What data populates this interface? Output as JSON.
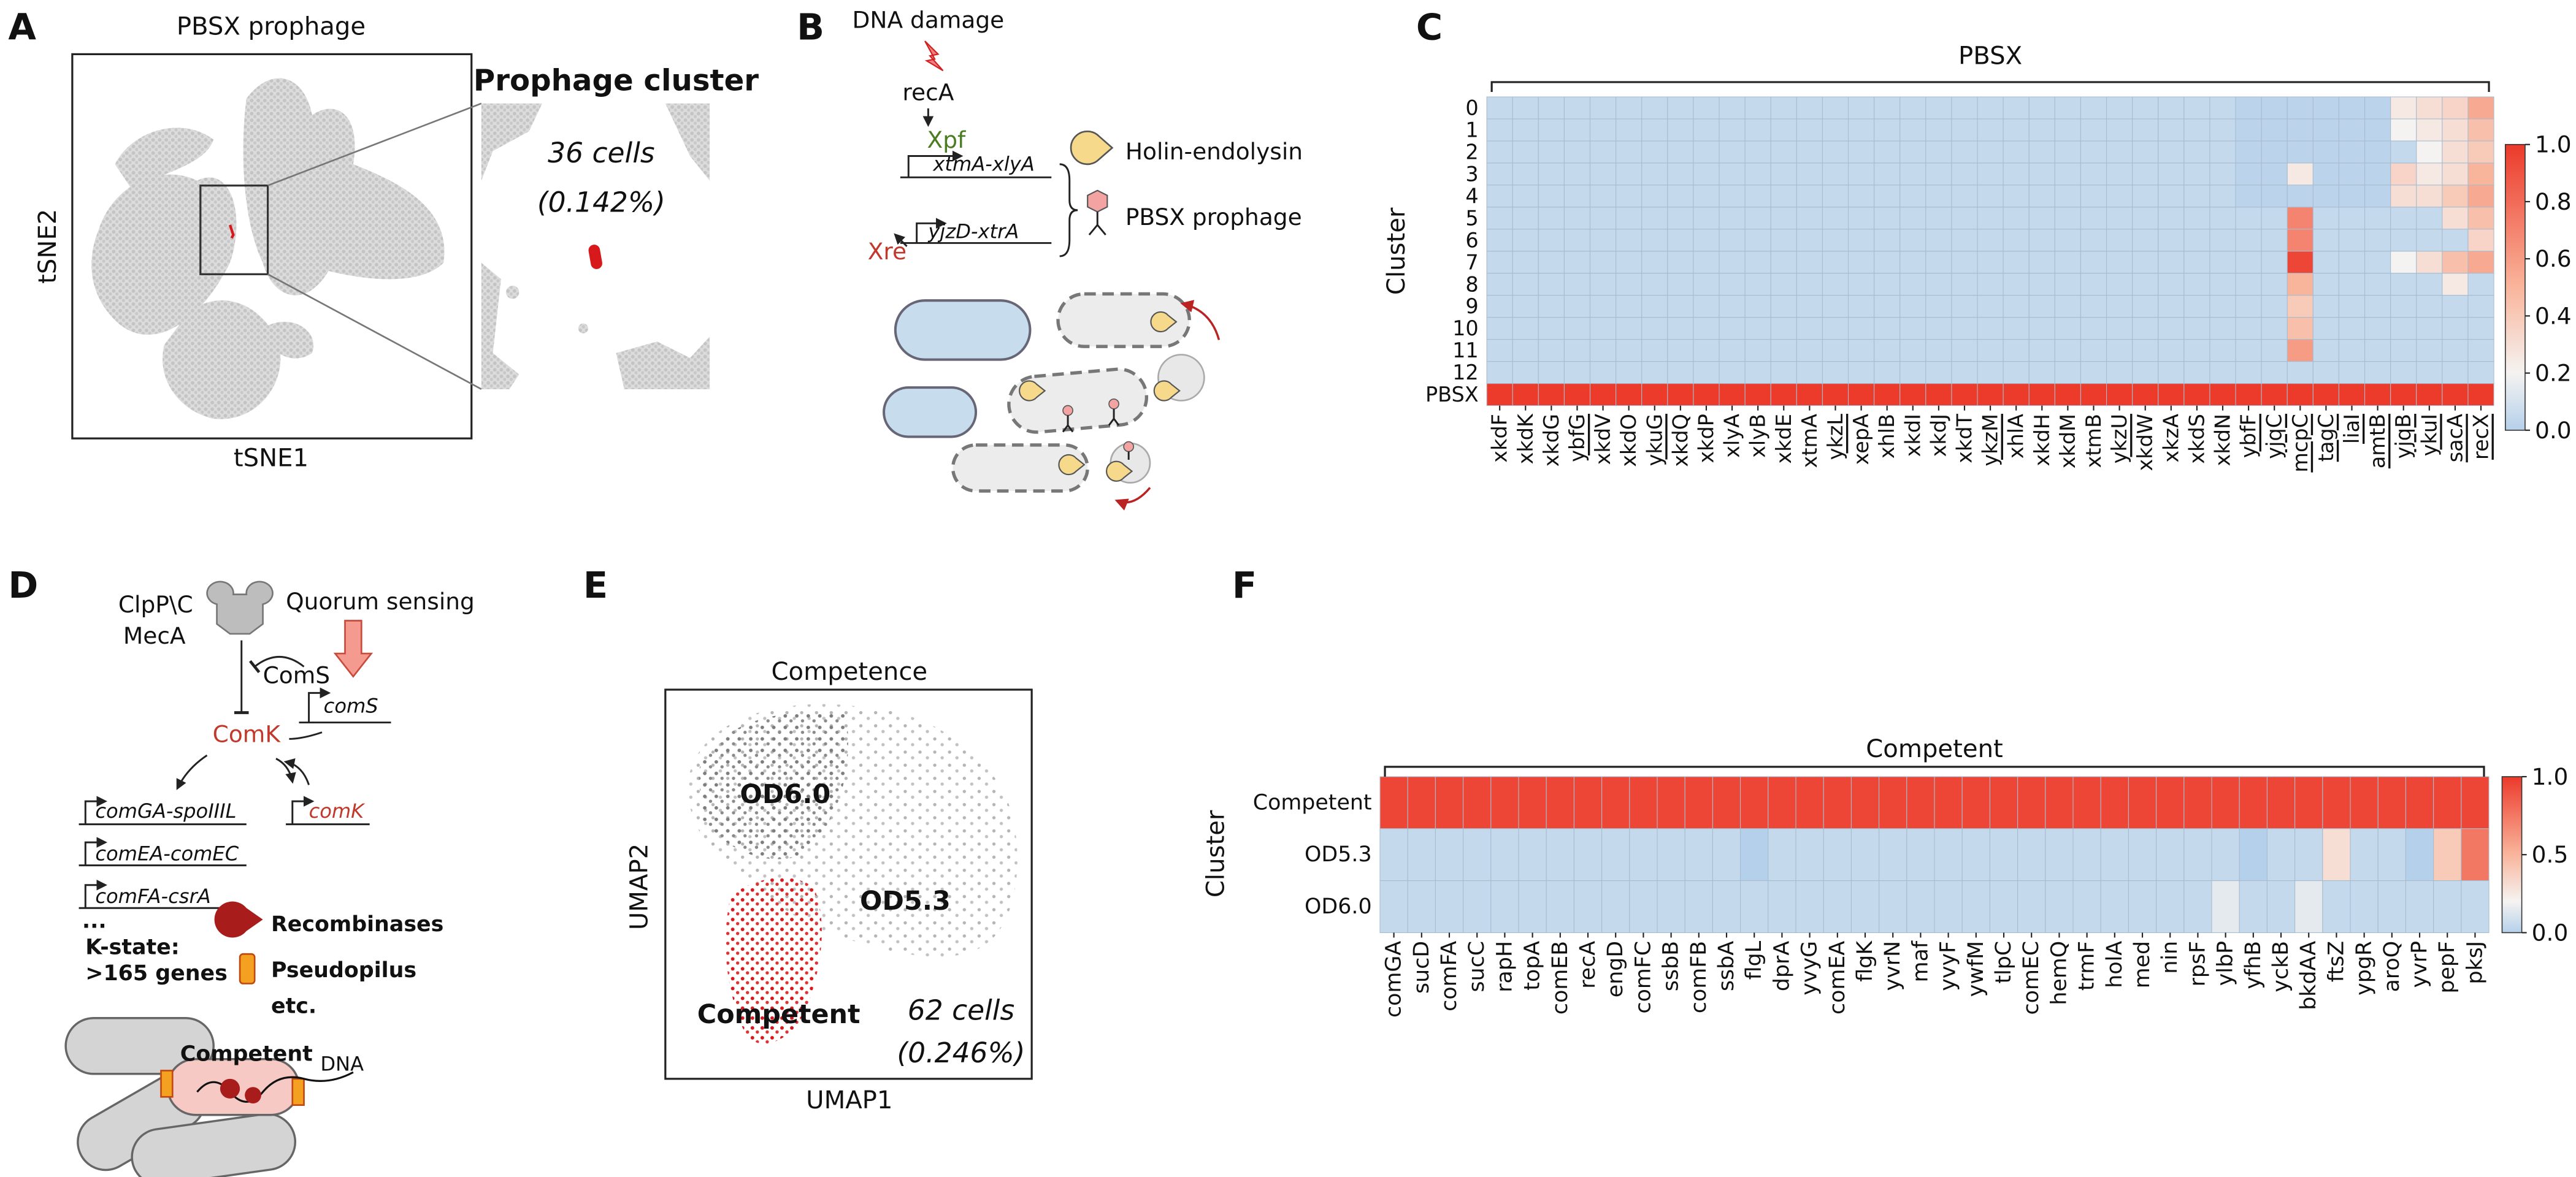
{
  "panel_labels": [
    "A",
    "B",
    "C",
    "D",
    "E",
    "F"
  ],
  "panel_a": {
    "title": "PBSX prophage",
    "x_label": "tSNE1",
    "y_label": "tSNE2",
    "inset_title": "Prophage cluster",
    "cell_count": "36 cells",
    "percent": "(0.142%)"
  },
  "panel_b": {
    "trigger": "DNA damage",
    "sensor": "recA",
    "activator": "Xpf",
    "operon_1": "xtmA-xlyA",
    "repressor": "Xre",
    "operon_2": "yjzD-xtrA",
    "legend_holin": "Holin-endolysin",
    "legend_phage": "PBSX prophage"
  },
  "panel_d": {
    "protease_1": "ClpP\\C",
    "protease_2": "MecA",
    "signal": "Quorum sensing",
    "peptide": "ComS",
    "peptide_gene": "comS",
    "regulator": "ComK",
    "operon_1": "comGA-spoIIIL",
    "self_gene": "comK",
    "operon_2": "comEA-comEC",
    "operon_3": "comFA-csrA",
    "ellipsis": "...",
    "legend_recombinases": "Recombinases",
    "kstate_1": "K-state:",
    "kstate_2": ">165 genes",
    "legend_pilus": "Pseudopilus",
    "legend_etc": "etc.",
    "cell_label": "Competent",
    "dna_label": "DNA"
  },
  "panel_e": {
    "title": "Competence",
    "x_label": "UMAP1",
    "y_label": "UMAP2",
    "group_1": "OD6.0",
    "group_2": "OD5.3",
    "group_3": "Competent",
    "cell_count": "62 cells",
    "percent": "(0.246%)"
  },
  "chart_data": [
    {
      "type": "heatmap",
      "title": "PBSX",
      "y_label": "Cluster",
      "rows": [
        "0",
        "1",
        "2",
        "3",
        "4",
        "5",
        "6",
        "7",
        "8",
        "9",
        "10",
        "11",
        "12",
        "PBSX"
      ],
      "columns": [
        "xkdF",
        "xkdK",
        "xkdG",
        "ybfG",
        "xkdV",
        "xkdO",
        "ykuG",
        "xkdQ",
        "xkdP",
        "xlyA",
        "xlyB",
        "xkdE",
        "xtmA",
        "ykzL",
        "xepA",
        "xhlB",
        "xkdI",
        "xkdJ",
        "xkdT",
        "ykzM",
        "xhlA",
        "xkdH",
        "xkdM",
        "xtmB",
        "ykzU",
        "xkdW",
        "xkzA",
        "xkdS",
        "xkdN",
        "ybfF",
        "yjqC",
        "mcpC",
        "tagC",
        "liaI",
        "amtB",
        "yjqB",
        "ykuI",
        "sacA",
        "recX"
      ],
      "underlined_columns": [
        3,
        6,
        13,
        19,
        24,
        29,
        30,
        31,
        32,
        33,
        34,
        35,
        36,
        37,
        38
      ],
      "values": [
        [
          0.05,
          0.05,
          0.05,
          0.05,
          0.05,
          0.05,
          0.05,
          0.05,
          0.05,
          0.05,
          0.05,
          0.05,
          0.05,
          0.05,
          0.05,
          0.05,
          0.05,
          0.05,
          0.05,
          0.05,
          0.05,
          0.05,
          0.05,
          0.05,
          0.05,
          0.05,
          0.05,
          0.05,
          0.05,
          0.02,
          0.02,
          0.02,
          0.02,
          0.02,
          0.02,
          0.25,
          0.3,
          0.35,
          0.55
        ],
        [
          0.05,
          0.05,
          0.05,
          0.05,
          0.05,
          0.05,
          0.05,
          0.05,
          0.05,
          0.05,
          0.05,
          0.05,
          0.05,
          0.05,
          0.05,
          0.05,
          0.05,
          0.05,
          0.05,
          0.05,
          0.05,
          0.05,
          0.05,
          0.05,
          0.05,
          0.05,
          0.05,
          0.05,
          0.05,
          0.02,
          0.02,
          0.02,
          0.02,
          0.02,
          0.02,
          0.2,
          0.25,
          0.3,
          0.45
        ],
        [
          0.05,
          0.05,
          0.05,
          0.05,
          0.05,
          0.05,
          0.05,
          0.05,
          0.05,
          0.05,
          0.05,
          0.05,
          0.05,
          0.05,
          0.05,
          0.05,
          0.05,
          0.05,
          0.05,
          0.05,
          0.05,
          0.05,
          0.05,
          0.05,
          0.05,
          0.05,
          0.05,
          0.05,
          0.05,
          0.02,
          0.02,
          0.02,
          0.02,
          0.02,
          0.02,
          0.05,
          0.2,
          0.3,
          0.4
        ],
        [
          0.05,
          0.05,
          0.05,
          0.05,
          0.05,
          0.05,
          0.05,
          0.05,
          0.05,
          0.05,
          0.05,
          0.05,
          0.05,
          0.05,
          0.05,
          0.05,
          0.05,
          0.05,
          0.05,
          0.05,
          0.05,
          0.05,
          0.05,
          0.05,
          0.05,
          0.05,
          0.05,
          0.05,
          0.05,
          0.02,
          0.02,
          0.25,
          0.02,
          0.02,
          0.02,
          0.35,
          0.25,
          0.3,
          0.5
        ],
        [
          0.05,
          0.05,
          0.05,
          0.05,
          0.05,
          0.05,
          0.05,
          0.05,
          0.05,
          0.05,
          0.05,
          0.05,
          0.05,
          0.05,
          0.05,
          0.05,
          0.05,
          0.05,
          0.05,
          0.05,
          0.05,
          0.05,
          0.05,
          0.05,
          0.05,
          0.05,
          0.05,
          0.05,
          0.05,
          0.02,
          0.02,
          0.02,
          0.02,
          0.02,
          0.02,
          0.3,
          0.3,
          0.4,
          0.55
        ],
        [
          0.05,
          0.05,
          0.05,
          0.05,
          0.05,
          0.05,
          0.05,
          0.05,
          0.05,
          0.05,
          0.05,
          0.05,
          0.05,
          0.05,
          0.05,
          0.05,
          0.05,
          0.05,
          0.05,
          0.05,
          0.05,
          0.05,
          0.05,
          0.05,
          0.05,
          0.05,
          0.05,
          0.05,
          0.05,
          0.05,
          0.05,
          0.7,
          0.05,
          0.05,
          0.05,
          0.05,
          0.05,
          0.3,
          0.45
        ],
        [
          0.05,
          0.05,
          0.05,
          0.05,
          0.05,
          0.05,
          0.05,
          0.05,
          0.05,
          0.05,
          0.05,
          0.05,
          0.05,
          0.05,
          0.05,
          0.05,
          0.05,
          0.05,
          0.05,
          0.05,
          0.05,
          0.05,
          0.05,
          0.05,
          0.05,
          0.05,
          0.05,
          0.05,
          0.05,
          0.05,
          0.05,
          0.7,
          0.05,
          0.05,
          0.05,
          0.05,
          0.05,
          0.05,
          0.35
        ],
        [
          0.05,
          0.05,
          0.05,
          0.05,
          0.05,
          0.05,
          0.05,
          0.05,
          0.05,
          0.05,
          0.05,
          0.05,
          0.05,
          0.05,
          0.05,
          0.05,
          0.05,
          0.05,
          0.05,
          0.05,
          0.05,
          0.05,
          0.05,
          0.05,
          0.05,
          0.05,
          0.05,
          0.05,
          0.05,
          0.05,
          0.05,
          0.95,
          0.05,
          0.05,
          0.05,
          0.2,
          0.3,
          0.45,
          0.55
        ],
        [
          0.05,
          0.05,
          0.05,
          0.05,
          0.05,
          0.05,
          0.05,
          0.05,
          0.05,
          0.05,
          0.05,
          0.05,
          0.05,
          0.05,
          0.05,
          0.05,
          0.05,
          0.05,
          0.05,
          0.05,
          0.05,
          0.05,
          0.05,
          0.05,
          0.05,
          0.05,
          0.05,
          0.05,
          0.05,
          0.05,
          0.05,
          0.5,
          0.05,
          0.05,
          0.05,
          0.05,
          0.05,
          0.25,
          0.05
        ],
        [
          0.05,
          0.05,
          0.05,
          0.05,
          0.05,
          0.05,
          0.05,
          0.05,
          0.05,
          0.05,
          0.05,
          0.05,
          0.05,
          0.05,
          0.05,
          0.05,
          0.05,
          0.05,
          0.05,
          0.05,
          0.05,
          0.05,
          0.05,
          0.05,
          0.05,
          0.05,
          0.05,
          0.05,
          0.05,
          0.05,
          0.05,
          0.4,
          0.05,
          0.05,
          0.05,
          0.05,
          0.05,
          0.05,
          0.05
        ],
        [
          0.05,
          0.05,
          0.05,
          0.05,
          0.05,
          0.05,
          0.05,
          0.05,
          0.05,
          0.05,
          0.05,
          0.05,
          0.05,
          0.05,
          0.05,
          0.05,
          0.05,
          0.05,
          0.05,
          0.05,
          0.05,
          0.05,
          0.05,
          0.05,
          0.05,
          0.05,
          0.05,
          0.05,
          0.05,
          0.05,
          0.05,
          0.45,
          0.05,
          0.05,
          0.05,
          0.05,
          0.05,
          0.05,
          0.05
        ],
        [
          0.05,
          0.05,
          0.05,
          0.05,
          0.05,
          0.05,
          0.05,
          0.05,
          0.05,
          0.05,
          0.05,
          0.05,
          0.05,
          0.05,
          0.05,
          0.05,
          0.05,
          0.05,
          0.05,
          0.05,
          0.05,
          0.05,
          0.05,
          0.05,
          0.05,
          0.05,
          0.05,
          0.05,
          0.05,
          0.05,
          0.05,
          0.6,
          0.05,
          0.05,
          0.05,
          0.05,
          0.05,
          0.05,
          0.05
        ],
        [
          0.05,
          0.05,
          0.05,
          0.05,
          0.05,
          0.05,
          0.05,
          0.05,
          0.05,
          0.05,
          0.05,
          0.05,
          0.05,
          0.05,
          0.05,
          0.05,
          0.05,
          0.05,
          0.05,
          0.05,
          0.05,
          0.05,
          0.05,
          0.05,
          0.05,
          0.05,
          0.05,
          0.05,
          0.05,
          0.05,
          0.05,
          0.05,
          0.05,
          0.05,
          0.05,
          0.05,
          0.05,
          0.05,
          0.05
        ],
        [
          1,
          1,
          1,
          1,
          1,
          1,
          1,
          1,
          1,
          1,
          1,
          1,
          1,
          1,
          1,
          1,
          1,
          1,
          1,
          1,
          1,
          1,
          1,
          1,
          1,
          1,
          1,
          1,
          1,
          1,
          1,
          1,
          1,
          1,
          1,
          1,
          1,
          1,
          1
        ]
      ],
      "clim": [
        0,
        1
      ],
      "cticks": [
        {
          "value": 0,
          "label": "0.0"
        },
        0.2,
        0.4,
        0.6,
        0.8,
        {
          "value": 1,
          "label": "1.0"
        }
      ]
    },
    {
      "type": "heatmap",
      "title": "Competent",
      "y_label": "Cluster",
      "rows": [
        "Competent",
        "OD5.3",
        "OD6.0"
      ],
      "columns": [
        "comGA",
        "sucD",
        "comFA",
        "sucC",
        "rapH",
        "topA",
        "comEB",
        "recA",
        "engD",
        "comFC",
        "ssbB",
        "comFB",
        "ssbA",
        "flgL",
        "dprA",
        "yvyG",
        "comEA",
        "flgK",
        "yvrN",
        "maf",
        "yvyF",
        "ywfM",
        "tlpC",
        "comEC",
        "hemQ",
        "trmF",
        "holA",
        "med",
        "nin",
        "rpsF",
        "ylbP",
        "yfhB",
        "yckB",
        "bkdAA",
        "ftsZ",
        "ypgR",
        "aroQ",
        "yvrP",
        "pepF",
        "pksJ"
      ],
      "underlined_columns": [],
      "values": [
        [
          0.95,
          0.95,
          0.95,
          0.95,
          0.95,
          0.95,
          0.95,
          0.95,
          0.95,
          0.95,
          0.95,
          0.95,
          0.95,
          0.95,
          0.95,
          0.95,
          0.95,
          0.95,
          0.95,
          0.95,
          0.95,
          0.95,
          0.95,
          0.95,
          0.95,
          0.95,
          0.95,
          0.95,
          0.95,
          0.95,
          0.95,
          0.95,
          0.95,
          0.95,
          0.95,
          0.95,
          0.95,
          0.95,
          0.95,
          0.95
        ],
        [
          0.05,
          0.05,
          0.05,
          0.05,
          0.05,
          0.05,
          0.05,
          0.05,
          0.05,
          0.05,
          0.05,
          0.05,
          0.05,
          0,
          0.05,
          0.05,
          0.05,
          0.05,
          0.05,
          0.05,
          0.05,
          0.05,
          0.05,
          0.05,
          0.05,
          0.05,
          0.05,
          0.05,
          0.05,
          0.05,
          0.05,
          0,
          0.05,
          0.05,
          0.3,
          0.05,
          0.05,
          0,
          0.4,
          0.75
        ],
        [
          0.05,
          0.05,
          0.05,
          0.05,
          0.05,
          0.05,
          0.05,
          0.05,
          0.05,
          0.05,
          0.05,
          0.05,
          0.05,
          0.05,
          0.05,
          0.05,
          0.05,
          0.05,
          0.05,
          0.05,
          0.05,
          0.05,
          0.05,
          0.05,
          0.05,
          0.05,
          0.05,
          0.05,
          0.05,
          0.05,
          0.15,
          0.05,
          0.05,
          0.15,
          0.05,
          0.05,
          0.05,
          0.05,
          0.05,
          0.05
        ]
      ],
      "clim": [
        0,
        1
      ],
      "cticks": [
        {
          "value": 0,
          "label": "0.0"
        },
        0.5,
        {
          "value": 1,
          "label": "1.0"
        }
      ]
    }
  ]
}
